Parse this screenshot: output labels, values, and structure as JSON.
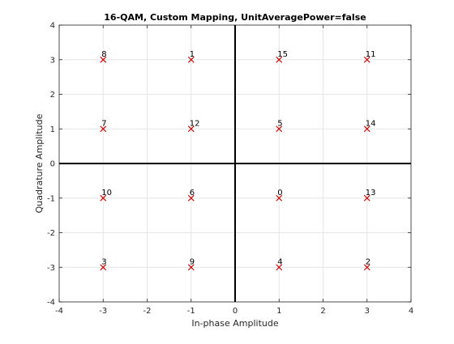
{
  "chart_data": {
    "type": "scatter",
    "title": "16-QAM, Custom Mapping, UnitAveragePower=false",
    "xlabel": "In-phase Amplitude",
    "ylabel": "Quadrature Amplitude",
    "xlim": [
      -4,
      4
    ],
    "ylim": [
      -4,
      4
    ],
    "xticks": [
      -4,
      -3,
      -2,
      -1,
      0,
      1,
      2,
      3,
      4
    ],
    "yticks": [
      -4,
      -3,
      -2,
      -1,
      0,
      1,
      2,
      3,
      4
    ],
    "grid": true,
    "marker": "x",
    "marker_color": "#d40000",
    "points": [
      {
        "x": -3,
        "y": 3,
        "label": "8"
      },
      {
        "x": -1,
        "y": 3,
        "label": "1"
      },
      {
        "x": 1,
        "y": 3,
        "label": "15"
      },
      {
        "x": 3,
        "y": 3,
        "label": "11"
      },
      {
        "x": -3,
        "y": 1,
        "label": "7"
      },
      {
        "x": -1,
        "y": 1,
        "label": "12"
      },
      {
        "x": 1,
        "y": 1,
        "label": "5"
      },
      {
        "x": 3,
        "y": 1,
        "label": "14"
      },
      {
        "x": -3,
        "y": -1,
        "label": "10"
      },
      {
        "x": -1,
        "y": -1,
        "label": "6"
      },
      {
        "x": 1,
        "y": -1,
        "label": "0"
      },
      {
        "x": 3,
        "y": -1,
        "label": "13"
      },
      {
        "x": -3,
        "y": -3,
        "label": "3"
      },
      {
        "x": -1,
        "y": -3,
        "label": "9"
      },
      {
        "x": 1,
        "y": -3,
        "label": "4"
      },
      {
        "x": 3,
        "y": -3,
        "label": "2"
      }
    ]
  }
}
